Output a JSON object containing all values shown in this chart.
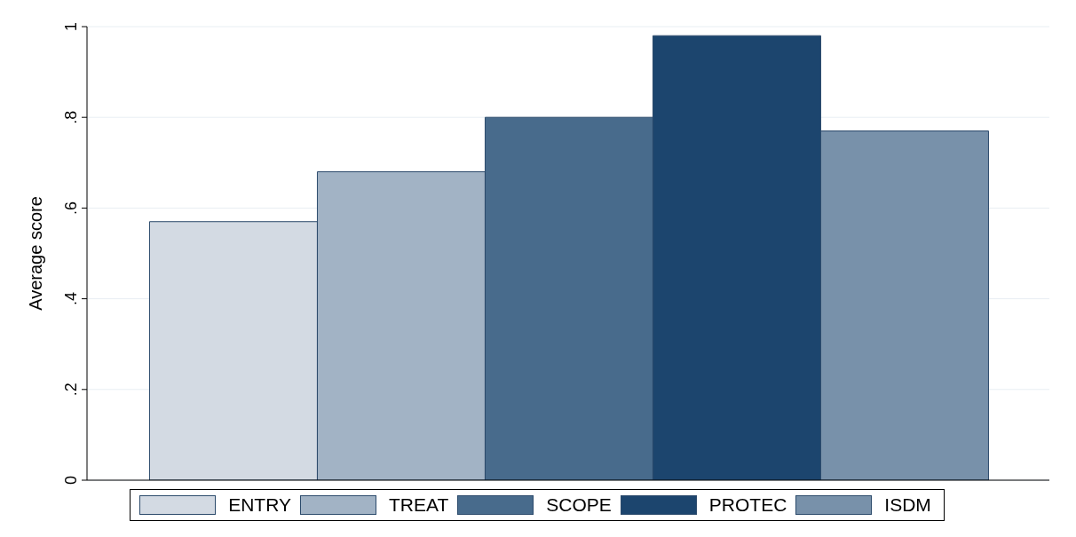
{
  "chart_data": {
    "type": "bar",
    "ylabel": "Average score",
    "categories": [
      null
    ],
    "series": [
      {
        "name": "ENTRY",
        "color": "#d3dae3",
        "values": [
          0.57
        ]
      },
      {
        "name": "TREAT",
        "color": "#a2b3c5",
        "values": [
          0.68
        ]
      },
      {
        "name": "SCOPE",
        "color": "#486b8c",
        "values": [
          0.8
        ]
      },
      {
        "name": "PROTEC",
        "color": "#1c456e",
        "values": [
          0.98
        ]
      },
      {
        "name": "ISDM",
        "color": "#7891aa",
        "values": [
          0.77
        ]
      }
    ],
    "ylim": [
      0,
      1
    ],
    "yticks": [
      0,
      {
        "value": 0.2,
        "label": ".2"
      },
      {
        "value": 0.4,
        "label": ".4"
      },
      {
        "value": 0.6,
        "label": ".6"
      },
      {
        "value": 0.8,
        "label": ".8"
      },
      1
    ],
    "grid": "y",
    "legend": "bottom"
  }
}
